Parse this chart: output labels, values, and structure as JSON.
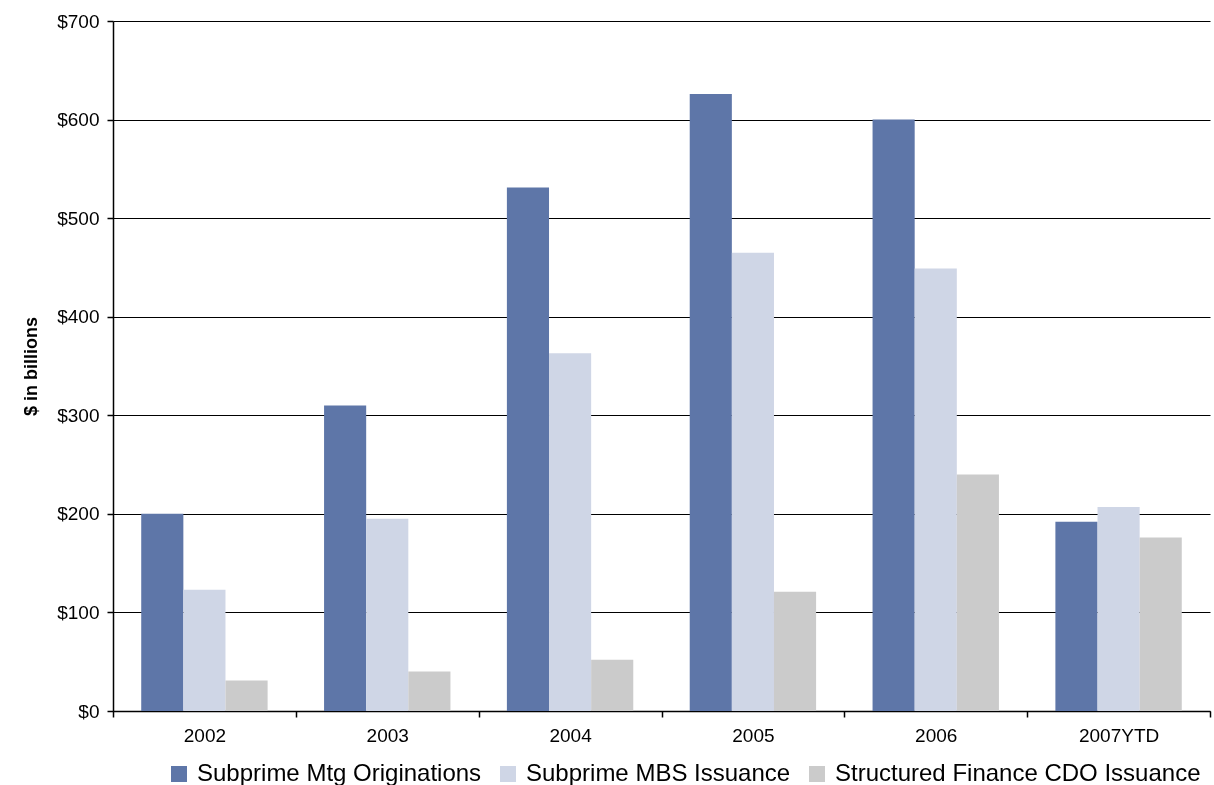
{
  "chart_data": {
    "type": "bar",
    "ylabel": "$ in billions",
    "categories": [
      "2002",
      "2003",
      "2004",
      "2005",
      "2006",
      "2007YTD"
    ],
    "series": [
      {
        "name": "Subprime Mtg Originations",
        "color": "#5e76a8",
        "values": [
          200,
          310,
          531,
          626,
          600,
          192
        ]
      },
      {
        "name": "Subprime MBS Issuance",
        "color": "#cfd6e6",
        "values": [
          123,
          195,
          363,
          465,
          449,
          207
        ]
      },
      {
        "name": "Structured Finance CDO Issuance",
        "color": "#cbcbcb",
        "values": [
          31,
          40,
          52,
          121,
          240,
          176
        ]
      }
    ],
    "ylim": [
      0,
      700
    ],
    "yticks": [
      {
        "value": 0,
        "label": "$0"
      },
      {
        "value": 100,
        "label": "$100"
      },
      {
        "value": 200,
        "label": "$200"
      },
      {
        "value": 300,
        "label": "$300"
      },
      {
        "value": 400,
        "label": "$400"
      },
      {
        "value": 500,
        "label": "$500"
      },
      {
        "value": 600,
        "label": "$600"
      },
      {
        "value": 700,
        "label": "$700"
      }
    ],
    "grid": "y",
    "legend": "bottom"
  }
}
